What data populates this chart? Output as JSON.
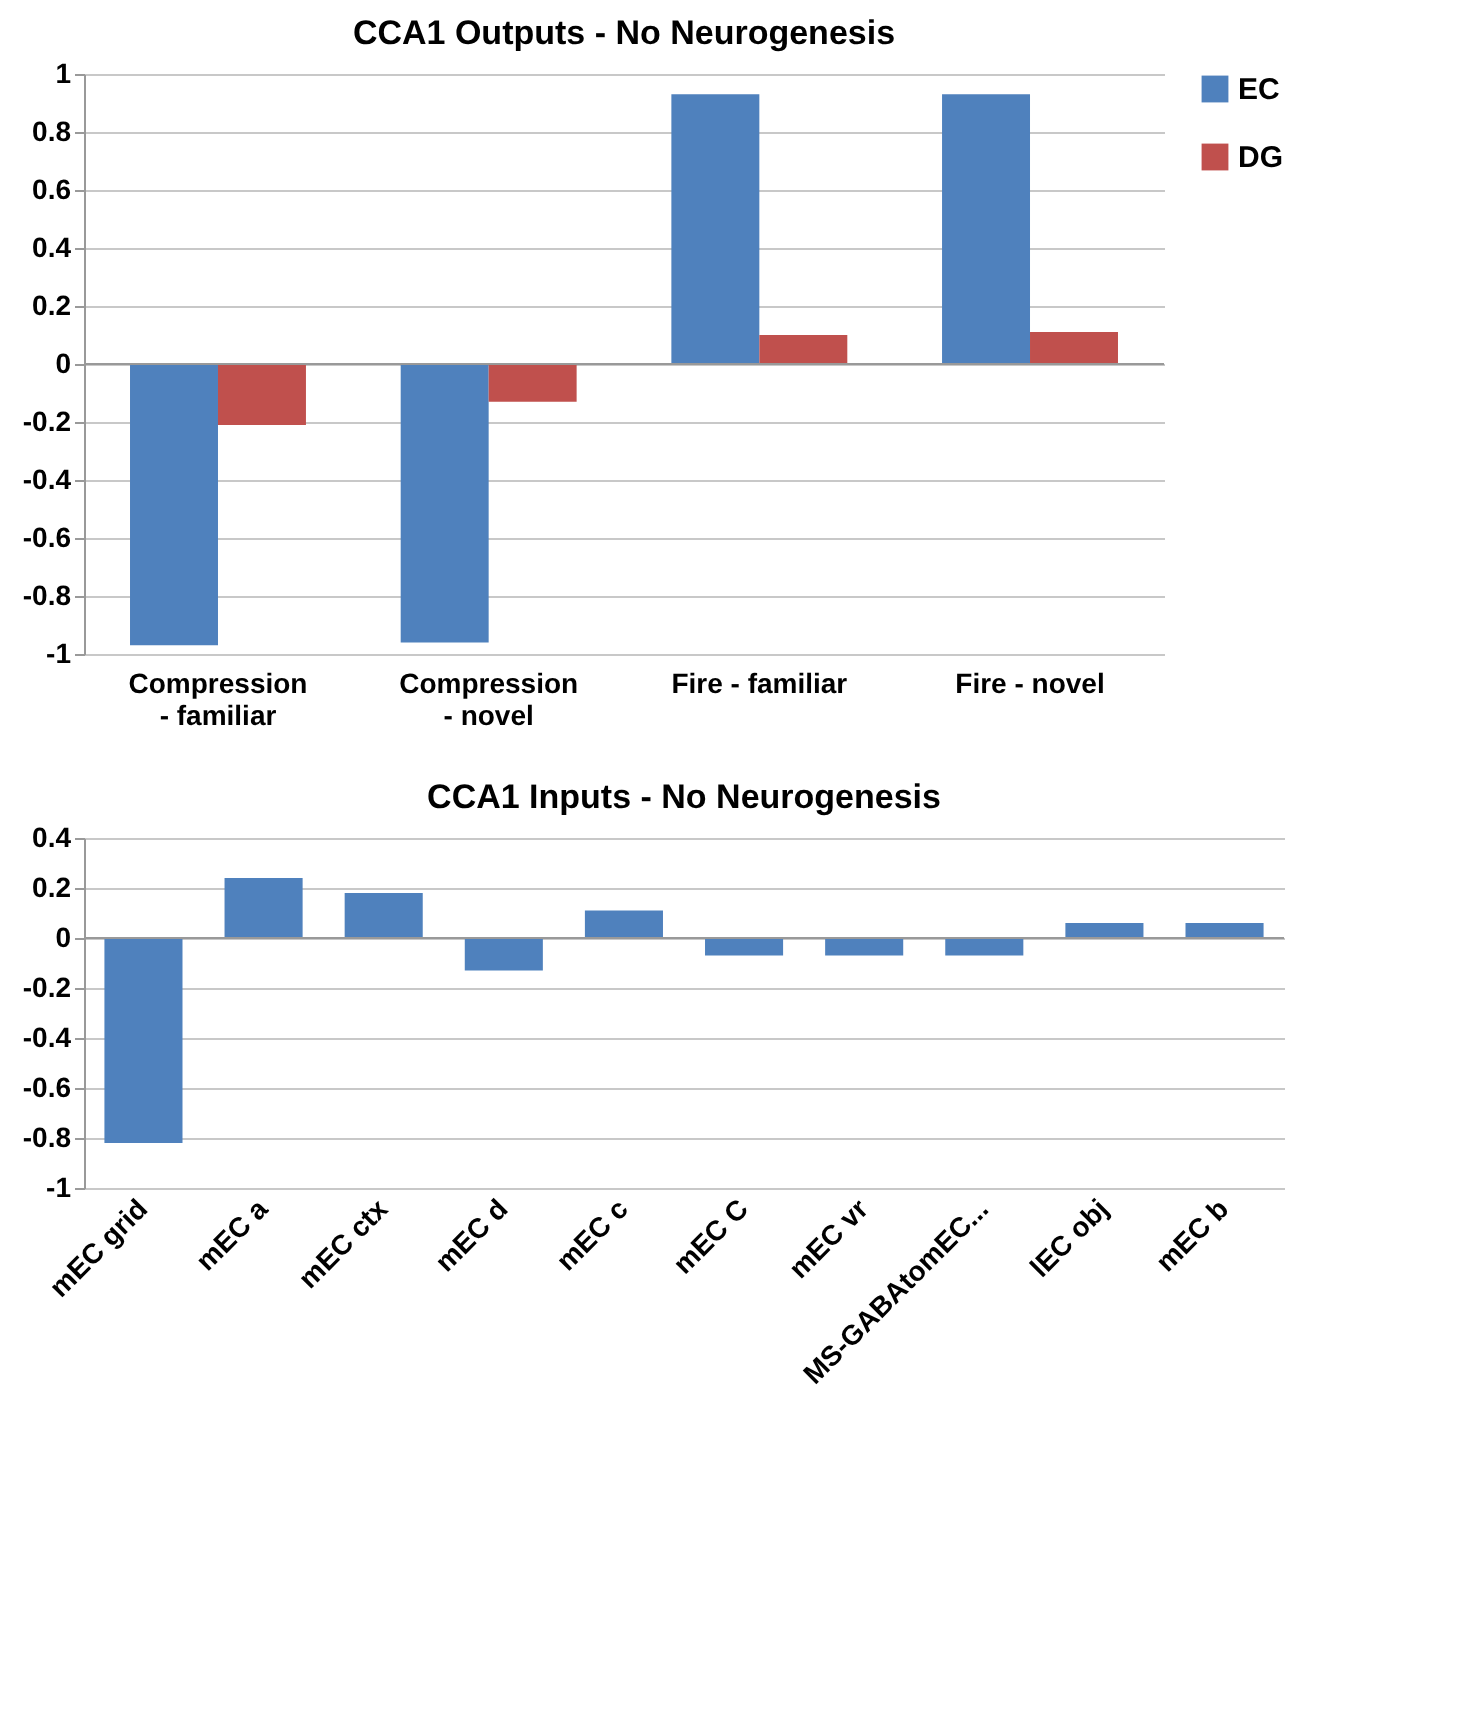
{
  "chart_data": [
    {
      "type": "bar",
      "title": "CCA1 Outputs - No Neurogenesis",
      "categories": [
        "Compression - familiar",
        "Compression - novel",
        "Fire - familiar",
        "Fire - novel"
      ],
      "series": [
        {
          "name": "EC",
          "color": "#4f81bd",
          "values": [
            -0.97,
            -0.96,
            0.93,
            0.93
          ]
        },
        {
          "name": "DG",
          "color": "#c0504d",
          "values": [
            -0.21,
            -0.13,
            0.1,
            0.11
          ]
        }
      ],
      "ylim": [
        -1,
        1
      ],
      "yticks": [
        -1,
        -0.8,
        -0.6,
        -0.4,
        -0.2,
        0,
        0.2,
        0.4,
        0.6,
        0.8,
        1
      ],
      "grid": "y",
      "legend": "right"
    },
    {
      "type": "bar",
      "title": "CCA1 Inputs - No Neurogenesis",
      "categories": [
        "mEC grid",
        "mEC a",
        "mEC ctx",
        "mEC d",
        "mEC c",
        "mEC C",
        "mEC vr",
        "MS-GABAtomEC...",
        "lEC obj",
        "mEC b"
      ],
      "series": [
        {
          "color": "#4f81bd",
          "values": [
            -0.82,
            0.24,
            0.18,
            -0.13,
            0.11,
            -0.07,
            -0.07,
            -0.07,
            0.06,
            0.06
          ]
        }
      ],
      "ylim": [
        -1,
        0.4
      ],
      "yticks": [
        -1,
        -0.8,
        -0.6,
        -0.4,
        -0.2,
        0,
        0.2,
        0.4
      ],
      "grid": "y"
    }
  ]
}
